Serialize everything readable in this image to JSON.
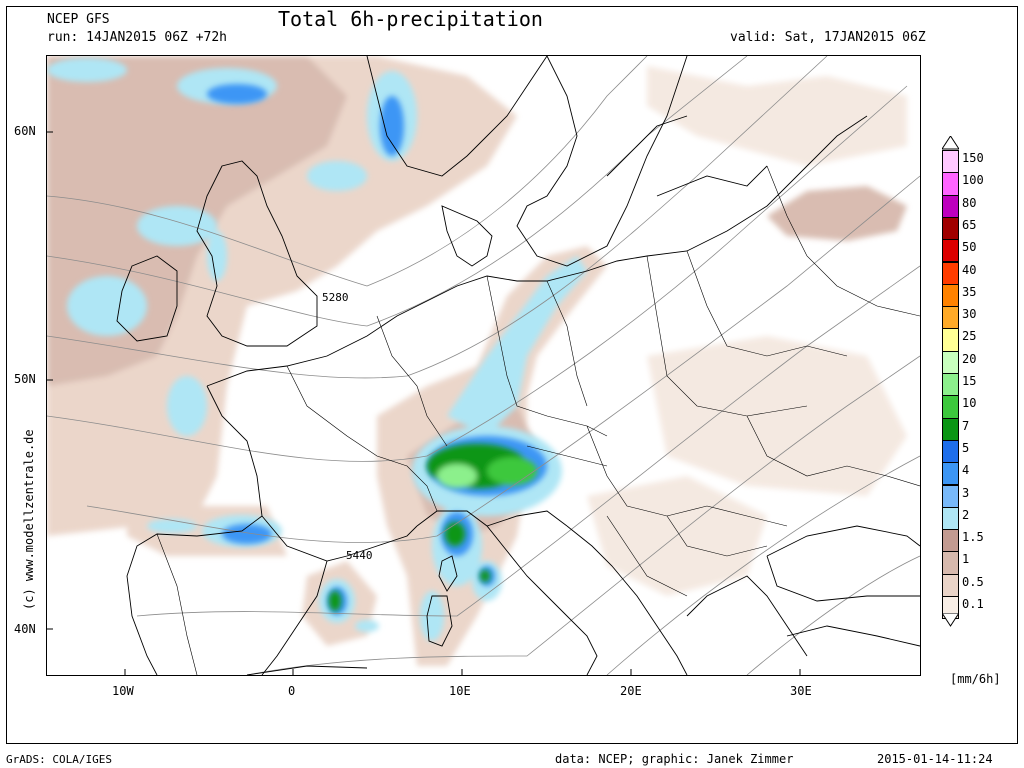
{
  "header": {
    "model": "NCEP GFS",
    "run": "run: 14JAN2015 06Z +72h",
    "title": "Total 6h-precipitation",
    "valid": "valid: Sat, 17JAN2015 06Z"
  },
  "footer": {
    "grads": "GrADS: COLA/IGES",
    "credit": "data: NCEP; graphic: Janek Zimmer",
    "timestamp": "2015-01-14-11:24"
  },
  "watermark": "(c) www.modellzentrale.de",
  "axes": {
    "lat_labels": [
      "60N",
      "50N",
      "40N"
    ],
    "lon_labels": [
      "10W",
      "0",
      "10E",
      "20E",
      "30E"
    ]
  },
  "contours": {
    "label_a": "5280",
    "label_b": "5440"
  },
  "colorbar": {
    "unit": "[mm/6h]",
    "levels": [
      {
        "label": "150",
        "color": "#ffc8ff"
      },
      {
        "label": "100",
        "color": "#ff64ff"
      },
      {
        "label": "80",
        "color": "#be00be"
      },
      {
        "label": "65",
        "color": "#a00000"
      },
      {
        "label": "50",
        "color": "#dc0000"
      },
      {
        "label": "40",
        "color": "#ff3c00"
      },
      {
        "label": "35",
        "color": "#ff8200"
      },
      {
        "label": "30",
        "color": "#ffaa28"
      },
      {
        "label": "25",
        "color": "#ffff96"
      },
      {
        "label": "20",
        "color": "#c8ffbe"
      },
      {
        "label": "15",
        "color": "#8cf08c"
      },
      {
        "label": "10",
        "color": "#3cc83c"
      },
      {
        "label": "7",
        "color": "#0a9614"
      },
      {
        "label": "5",
        "color": "#1e6eeb"
      },
      {
        "label": "4",
        "color": "#3c96f5"
      },
      {
        "label": "3",
        "color": "#78b9fa"
      },
      {
        "label": "2",
        "color": "#afe6f5"
      },
      {
        "label": "1.5",
        "color": "#c39b91"
      },
      {
        "label": "1",
        "color": "#d7b9ad"
      },
      {
        "label": "0.5",
        "color": "#ead4c8"
      },
      {
        "label": "0.1",
        "color": "#f8eee6"
      }
    ]
  }
}
